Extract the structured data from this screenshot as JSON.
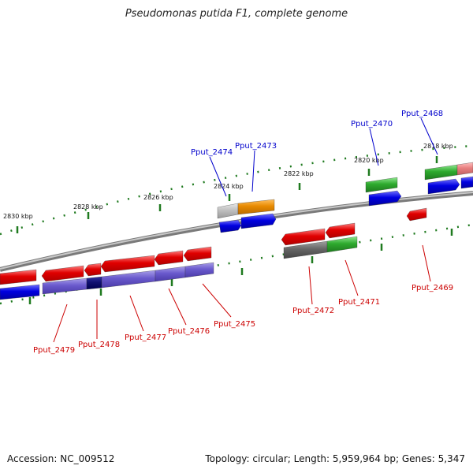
{
  "title": "Pseudomonas putida F1, complete genome",
  "footer": {
    "accession": "Accession: NC_009512",
    "summary": "Topology: circular; Length: 5,959,964 bp; Genes: 5,347"
  },
  "scale_labels": [
    "2830 kbp",
    "2828 kbp",
    "2826 kbp",
    "2824 kbp",
    "2822 kbp",
    "2820 kbp",
    "2818 kbp"
  ],
  "gene_labels": {
    "forward": [
      "Pput_2474",
      "Pput_2473",
      "Pput_2470",
      "Pput_2468"
    ],
    "reverse": [
      "Pput_2479",
      "Pput_2478",
      "Pput_2477",
      "Pput_2476",
      "Pput_2475",
      "Pput_2472",
      "Pput_2471",
      "Pput_2469"
    ]
  },
  "colors": {
    "forward_label": "#0000cc",
    "reverse_label": "#cc0000",
    "backbone": "#888888",
    "red": "#e00000",
    "blue": "#0000e0",
    "purple": "#6a5acd",
    "green": "#2eaa2e",
    "orange": "#e88a00",
    "gray": "#666666",
    "tick": "#1f7a1f"
  }
}
